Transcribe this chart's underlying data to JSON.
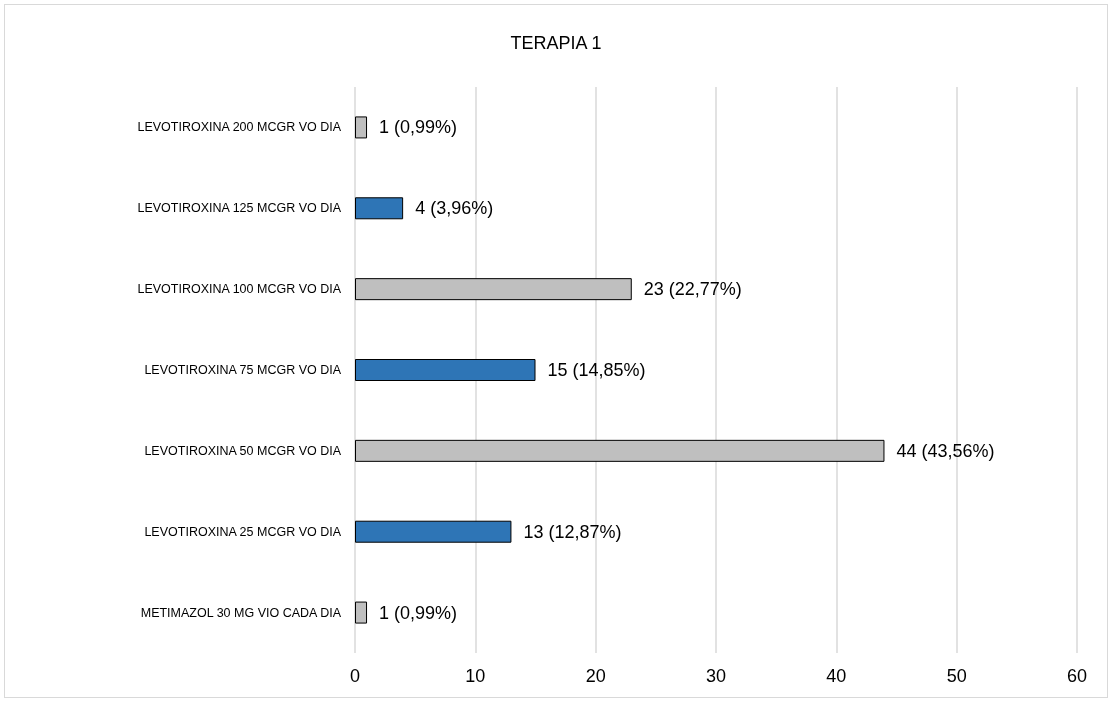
{
  "chart_data": {
    "type": "bar",
    "orientation": "horizontal",
    "title": "TERAPIA 1",
    "categories": [
      "LEVOTIROXINA 200 MCGR VO DIA",
      "LEVOTIROXINA 125 MCGR VO DIA",
      "LEVOTIROXINA 100 MCGR VO DIA",
      "LEVOTIROXINA 75 MCGR VO DIA",
      "LEVOTIROXINA 50 MCGR VO DIA",
      "LEVOTIROXINA 25 MCGR VO DIA",
      "METIMAZOL 30 MG VIO CADA DIA"
    ],
    "values": [
      1,
      4,
      23,
      15,
      44,
      13,
      1
    ],
    "colors": [
      "#bfbfbf",
      "#2e75b6",
      "#bfbfbf",
      "#2e75b6",
      "#bfbfbf",
      "#2e75b6",
      "#bfbfbf"
    ],
    "value_labels": [
      "1 (0,99%)",
      "4 (3,96%)",
      "23 (22,77%)",
      "15 (14,85%)",
      "44 (43,56%)",
      "13 (12,87%)",
      "1 (0,99%)"
    ],
    "xlim": [
      0,
      60
    ],
    "xticks": [
      0,
      10,
      20,
      30,
      40,
      50,
      60
    ],
    "grid": "x"
  }
}
